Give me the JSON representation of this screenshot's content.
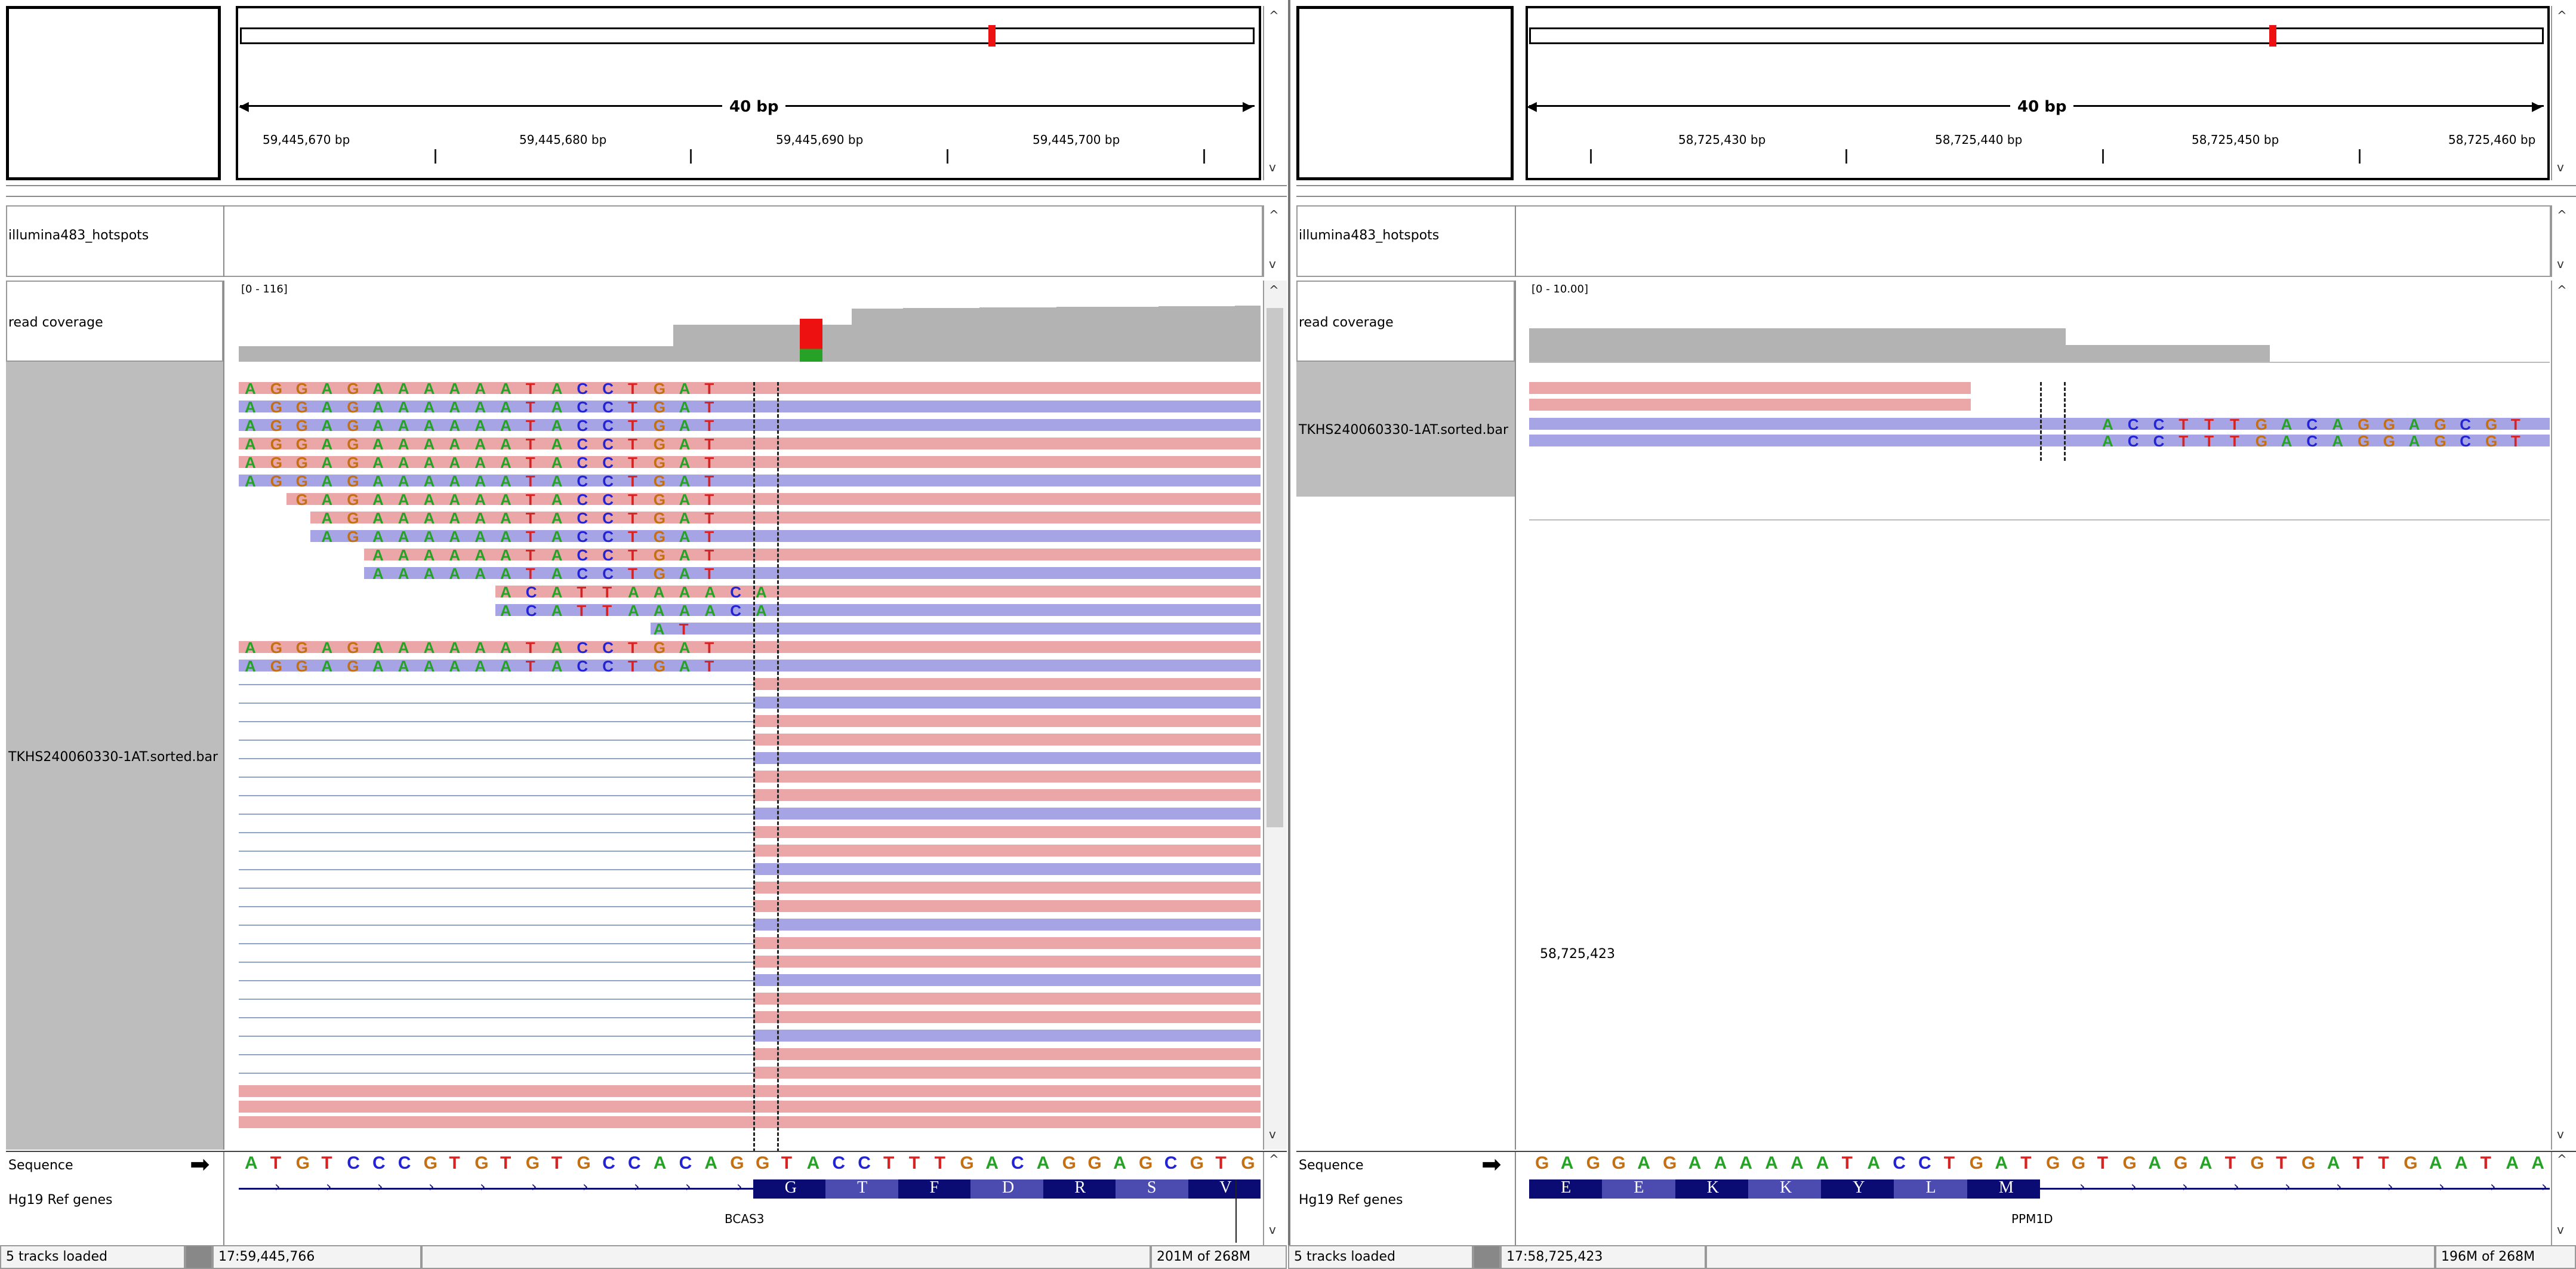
{
  "panels": [
    {
      "id": "left",
      "span_label": "40 bp",
      "ruler_ticks": [
        "59,445,670 bp",
        "59,445,680 bp",
        "59,445,690 bp",
        "59,445,700 bp"
      ],
      "tracks": {
        "hotspots": "illumina483_hotspots",
        "coverage": "read coverage",
        "coverage_range": "[0 - 116]",
        "bam": "TKHS240060330-1AT.sorted.bar",
        "sequence": "Sequence",
        "genes": "Hg19 Ref genes"
      },
      "sequence": "ATGTCCCGTGTGTGCCACAGGTACCTTTGACAGGAGCGTG",
      "gene_name": "BCAS3",
      "amino_acids": [
        "G",
        "T",
        "F",
        "D",
        "R",
        "S",
        "V"
      ],
      "read_bases_full": "AGGAGAAAAAATACCTGAT",
      "read_bases_short": "ACATTAAAACA",
      "status": {
        "tracks_loaded": "5 tracks loaded",
        "locus": "17:59,445,766",
        "memory": "201M of 268M"
      }
    },
    {
      "id": "right",
      "span_label": "40 bp",
      "ruler_ticks": [
        "58,725,430 bp",
        "58,725,440 bp",
        "58,725,450 bp",
        "58,725,460 bp"
      ],
      "tracks": {
        "hotspots": "illumina483_hotspots",
        "coverage": "read coverage",
        "coverage_range": "[0 - 10.00]",
        "bam": "TKHS240060330-1AT.sorted.bar",
        "sequence": "Sequence",
        "genes": "Hg19 Ref genes"
      },
      "sequence": "GAGGAGAAAAAATACCTGATGGTGAGATGTGATTGAATAA",
      "gene_name": "PPM1D",
      "amino_acids": [
        "E",
        "E",
        "K",
        "K",
        "Y",
        "L",
        "M"
      ],
      "read_bases": "ACCTTTGACAGGAGCGT",
      "position_label": "58,725,423",
      "status": {
        "tracks_loaded": "5 tracks loaded",
        "locus": "17:58,725,423",
        "memory": "196M of 268M"
      }
    }
  ],
  "colors": {
    "base_A": "#26a326",
    "base_C": "#2323d6",
    "base_G": "#c46f12",
    "base_T": "#d62323",
    "read_forward": "#eba7a8",
    "read_reverse": "#a7a4e6",
    "coverage": "#b3b3b3",
    "gene_exon": "#0b0b74",
    "variant_red": "#ee1111"
  }
}
